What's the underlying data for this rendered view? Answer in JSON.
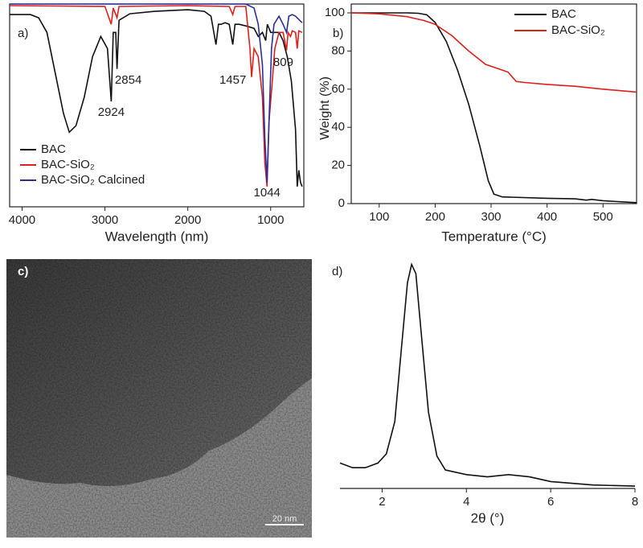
{
  "chart_data": [
    {
      "type": "line",
      "panel_label": "a)",
      "x_label": "Wavelength (nm)",
      "xlim": [
        4150,
        600
      ],
      "xticks": [
        4000,
        3000,
        2000,
        1000
      ],
      "ylim": [
        0,
        100
      ],
      "annotations": [
        2924,
        2854,
        1457,
        1044,
        809
      ],
      "legend": "lower left",
      "series": [
        {
          "name": "BAC",
          "color": "#111111",
          "x": [
            4150,
            3900,
            3800,
            3700,
            3600,
            3500,
            3430,
            3350,
            3250,
            3150,
            3050,
            2970,
            2924,
            2900,
            2870,
            2854,
            2830,
            2700,
            2400,
            2000,
            1800,
            1720,
            1660,
            1630,
            1600,
            1550,
            1500,
            1457,
            1430,
            1380,
            1300,
            1200,
            1150,
            1100,
            1060,
            1040,
            1000,
            900,
            850,
            800,
            750,
            700,
            680,
            660,
            640,
            620
          ],
          "values": [
            94.8,
            94.8,
            93.2,
            86,
            66,
            46,
            36.8,
            40,
            54,
            74,
            84,
            78,
            52,
            86,
            86,
            68,
            92,
            95.2,
            96.4,
            97.2,
            96.4,
            94,
            80,
            90,
            90,
            90.8,
            90,
            80,
            90,
            90,
            89.2,
            88,
            84,
            86,
            82,
            90,
            86,
            86,
            82,
            74,
            62,
            38,
            10,
            18,
            12,
            10
          ]
        },
        {
          "name": "BAC-SiO₂",
          "color": "#e0201b",
          "x": [
            4150,
            3000,
            2924,
            2900,
            2854,
            2830,
            2000,
            1500,
            1457,
            1430,
            1300,
            1250,
            1230,
            1200,
            1150,
            1100,
            1070,
            1044,
            1020,
            980,
            950,
            900,
            850,
            809,
            790,
            760,
            740,
            700,
            680,
            660,
            620
          ],
          "values": [
            99.2,
            98.8,
            90,
            98,
            93.2,
            98.8,
            99.2,
            98.8,
            94.8,
            98.8,
            98.8,
            78,
            64,
            78,
            74,
            54,
            22,
            10,
            42,
            62,
            78,
            86,
            86,
            77.2,
            86,
            84,
            86.8,
            86,
            78,
            86.8,
            86
          ]
        },
        {
          "name": "BAC-SiO₂ Calcined",
          "color": "#2b2f9a",
          "x": [
            4150,
            1300,
            1200,
            1150,
            1100,
            1070,
            1044,
            1020,
            990,
            960,
            900,
            850,
            809,
            780,
            740,
            700,
            650,
            620
          ],
          "values": [
            100,
            100,
            98,
            90,
            70,
            34,
            12,
            42,
            78,
            90,
            94,
            90,
            86,
            94,
            94.8,
            94,
            92,
            90.8
          ]
        }
      ]
    },
    {
      "type": "line",
      "panel_label": "b)",
      "x_label": "Temperature (°C)",
      "y_label": "Weight (%)",
      "xlim": [
        50,
        560
      ],
      "xticks": [
        100,
        200,
        300,
        400,
        500
      ],
      "ylim": [
        0,
        100
      ],
      "yticks": [
        0,
        20,
        40,
        60,
        80,
        100
      ],
      "legend": "upper right",
      "series": [
        {
          "name": "BAC",
          "color": "#111111",
          "x": [
            50,
            150,
            170,
            185,
            200,
            220,
            240,
            260,
            280,
            295,
            305,
            320,
            400,
            450,
            470,
            480,
            500,
            540,
            560
          ],
          "values": [
            100,
            100,
            99.8,
            99,
            95,
            85,
            70,
            52,
            30,
            12,
            5,
            3.5,
            2.8,
            2.5,
            1.8,
            2.2,
            1.5,
            0.8,
            0.5
          ]
        },
        {
          "name": "BAC-SiO₂",
          "color": "#e0201b",
          "x": [
            50,
            100,
            150,
            180,
            200,
            230,
            260,
            290,
            310,
            330,
            345,
            360,
            400,
            450,
            500,
            560
          ],
          "values": [
            100,
            99.5,
            98,
            96,
            94,
            88,
            80,
            73,
            71,
            69,
            64,
            63.5,
            62.5,
            61.5,
            60,
            58.5
          ]
        }
      ]
    },
    {
      "type": "line",
      "panel_label": "d)",
      "x_label": "2θ (°)",
      "xlim": [
        1,
        8
      ],
      "xticks": [
        2,
        4,
        6,
        8
      ],
      "ylim": [
        0,
        100
      ],
      "series": [
        {
          "color": "#111111",
          "x": [
            1,
            1.3,
            1.6,
            1.9,
            2.1,
            2.3,
            2.45,
            2.6,
            2.7,
            2.8,
            2.95,
            3.1,
            3.3,
            3.5,
            4,
            4.5,
            5,
            5.5,
            6,
            7,
            8
          ],
          "values": [
            11,
            9,
            9,
            11,
            15,
            29,
            59,
            89,
            97,
            93,
            63,
            33,
            14,
            8,
            6,
            5,
            6,
            5,
            3,
            1.5,
            1
          ]
        }
      ]
    }
  ],
  "image": {
    "panel_label": "c)",
    "scale_bar": "20 nm"
  }
}
